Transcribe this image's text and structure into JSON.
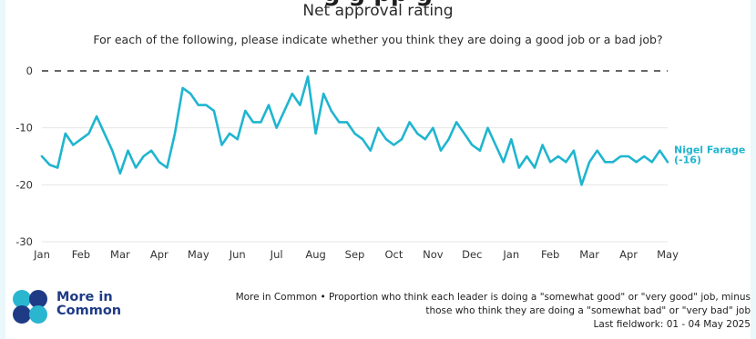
{
  "header": {
    "cut_title": "g     g     pp        g",
    "subtitle": "Net approval rating",
    "question": "For each of the following, please indicate whether you think they are doing a good job or a bad job?"
  },
  "footer": {
    "brand_line1": "More in",
    "brand_line2": "Common",
    "source_line1": "More in Common • Proportion who think each leader is doing a \"somewhat good\" or \"very good\" job, minus",
    "source_line2": "those who think they are doing a \"somewhat bad\" or \"very bad\" job",
    "source_line3": "Last fieldwork: 01 - 04 May 2025"
  },
  "colors": {
    "series": "#1fb5cf",
    "reference": "#333333",
    "grid": "#e6e6e6",
    "logo_dark": "#1f3b86",
    "logo_teal": "#2bb6cf"
  },
  "chart_data": {
    "type": "line",
    "title": "Net approval rating",
    "ylim": [
      -30,
      0
    ],
    "yticks": [
      0,
      -10,
      -20,
      -30
    ],
    "xticks": [
      "Jan",
      "Feb",
      "Mar",
      "Apr",
      "May",
      "Jun",
      "Jul",
      "Aug",
      "Sep",
      "Oct",
      "Nov",
      "Dec",
      "Jan",
      "Feb",
      "Mar",
      "Apr",
      "May"
    ],
    "xlim": [
      0,
      16
    ],
    "reference_line": 0,
    "grid": true,
    "series": [
      {
        "name": "Nigel Farage",
        "end_label": "(-16)",
        "x": [
          0,
          0.2,
          0.4,
          0.6,
          0.8,
          1.0,
          1.2,
          1.4,
          1.6,
          1.8,
          2.0,
          2.2,
          2.4,
          2.6,
          2.8,
          3.0,
          3.2,
          3.4,
          3.6,
          3.8,
          4.0,
          4.2,
          4.4,
          4.6,
          4.8,
          5.0,
          5.2,
          5.4,
          5.6,
          5.8,
          6.0,
          6.2,
          6.4,
          6.6,
          6.8,
          7.0,
          7.2,
          7.4,
          7.6,
          7.8,
          8.0,
          8.2,
          8.4,
          8.6,
          8.8,
          9.0,
          9.2,
          9.4,
          9.6,
          9.8,
          10.0,
          10.2,
          10.4,
          10.6,
          10.8,
          11.0,
          11.2,
          11.4,
          11.6,
          11.8,
          12.0,
          12.2,
          12.4,
          12.6,
          12.8,
          13.0,
          13.2,
          13.4,
          13.6,
          13.8,
          14.0,
          14.2,
          14.4,
          14.6,
          14.8,
          15.0,
          15.2,
          15.4,
          15.6,
          15.8,
          16.0
        ],
        "values": [
          -15,
          -16.5,
          -17,
          -11,
          -13,
          -12,
          -11,
          -8,
          -11,
          -14,
          -18,
          -14,
          -17,
          -15,
          -14,
          -16,
          -17,
          -11,
          -3,
          -4,
          -6,
          -6,
          -7,
          -13,
          -11,
          -12,
          -7,
          -9,
          -9,
          -6,
          -10,
          -7,
          -4,
          -6,
          -1,
          -11,
          -4,
          -7,
          -9,
          -9,
          -11,
          -12,
          -14,
          -10,
          -12,
          -13,
          -12,
          -9,
          -11,
          -12,
          -10,
          -14,
          -12,
          -9,
          -11,
          -13,
          -14,
          -10,
          -13,
          -16,
          -12,
          -17,
          -15,
          -17,
          -13,
          -16,
          -15,
          -16,
          -14,
          -20,
          -16,
          -14,
          -16,
          -16,
          -15,
          -15,
          -16,
          -15,
          -16,
          -14,
          -16
        ]
      }
    ]
  }
}
